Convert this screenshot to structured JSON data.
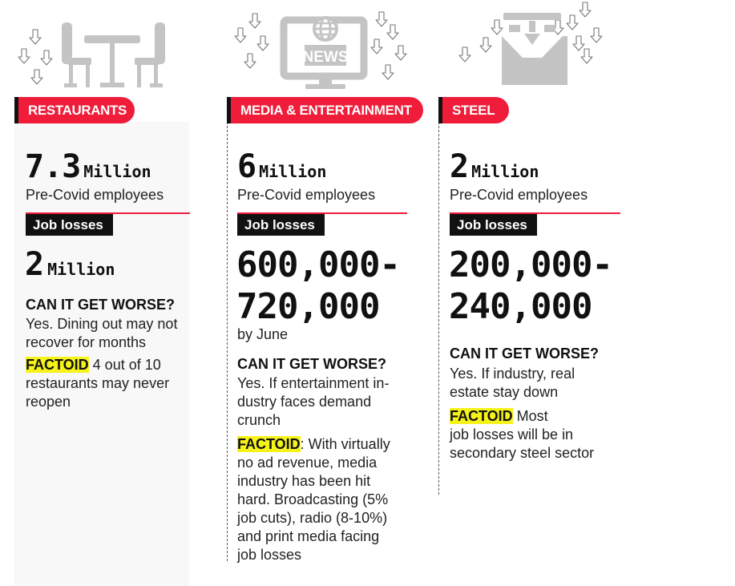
{
  "sectors": [
    {
      "header": "RESTAURANTS",
      "pre_covid_number": "7.3",
      "pre_covid_unit": "Million",
      "pre_covid_label": "Pre-Covid employees",
      "job_losses_label": "Job losses",
      "loss_number": "2",
      "loss_unit": "Million",
      "worse_title": "CAN IT GET WORSE?",
      "worse_lines": [
        "Yes. Dining out may not",
        "recover for months"
      ],
      "factoid_tag": "FACTOID",
      "factoid_lines": [
        " 4 out of 10",
        "restaurants may never",
        "reopen"
      ]
    },
    {
      "header": "MEDIA & ENTERTAINMENT",
      "pre_covid_number": "6",
      "pre_covid_unit": "Million",
      "pre_covid_label": "Pre-Covid employees",
      "job_losses_label": "Job losses",
      "loss_lines": [
        "600,000-",
        "720,000"
      ],
      "loss_note": "by June",
      "worse_title": "CAN IT GET WORSE?",
      "worse_lines": [
        "Yes. If entertainment in-",
        "dustry faces demand",
        "crunch"
      ],
      "factoid_tag": "FACTOID",
      "factoid_lines": [
        ": With virtually",
        "no ad revenue, media",
        "industry has been hit",
        "hard. Broadcasting (5%",
        "job cuts), radio (8-10%)",
        "and print media facing",
        "job losses"
      ]
    },
    {
      "header": "STEEL",
      "pre_covid_number": "2",
      "pre_covid_unit": "Million",
      "pre_covid_label": "Pre-Covid employees",
      "job_losses_label": "Job losses",
      "loss_lines": [
        "200,000-",
        "240,000"
      ],
      "worse_title": "CAN IT GET WORSE?",
      "worse_lines": [
        "Yes. If industry, real",
        "estate stay down"
      ],
      "factoid_tag": "FACTOID",
      "factoid_lines": [
        " Most",
        "job losses will be in",
        "secondary steel sector"
      ]
    }
  ],
  "icons": {
    "restaurants": "table-chairs-icon",
    "media": "news-monitor-icon",
    "steel": "steel-press-icon",
    "decor": "down-arrow-icon"
  },
  "colors": {
    "accent_red": "#ef1c3a",
    "factoid_yellow": "#f6f31a",
    "icon_gray": "#c4c4c4"
  }
}
